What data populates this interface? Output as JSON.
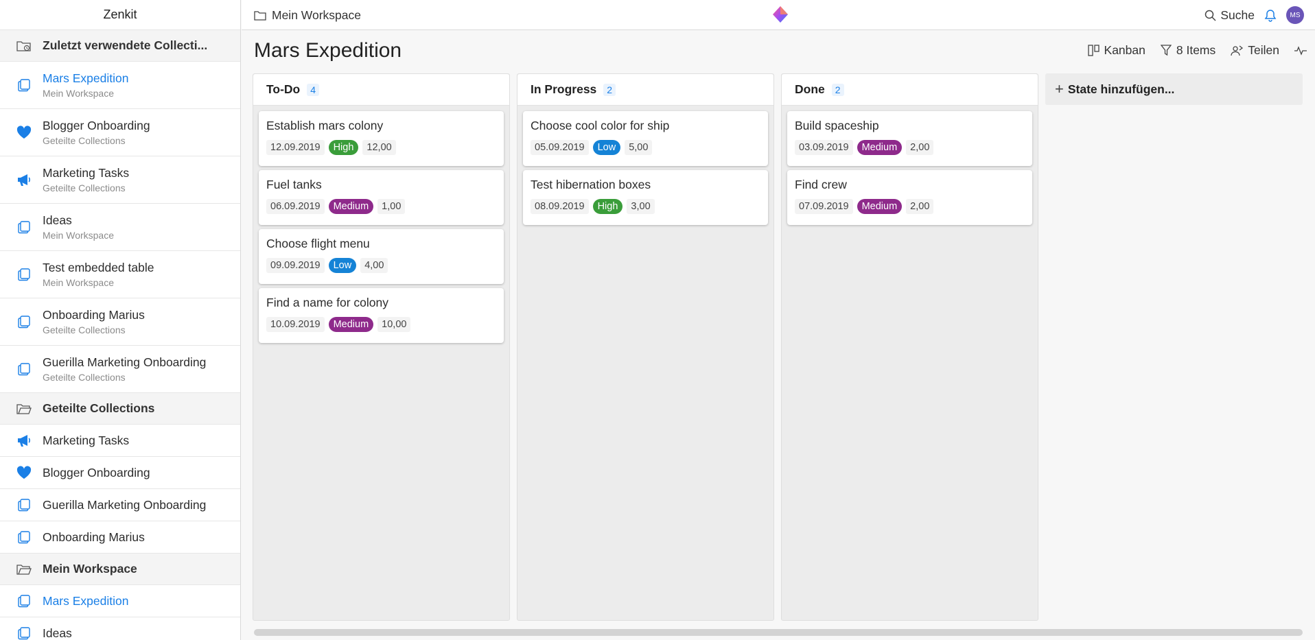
{
  "app": {
    "name": "Zenkit"
  },
  "sidebar": {
    "recent_header": "Zuletzt verwendete Collecti...",
    "recent": [
      {
        "label": "Mars Expedition",
        "sub": "Mein Workspace",
        "icon": "collection-icon",
        "active": true
      },
      {
        "label": "Blogger Onboarding",
        "sub": "Geteilte Collections",
        "icon": "heart-icon"
      },
      {
        "label": "Marketing Tasks",
        "sub": "Geteilte Collections",
        "icon": "megaphone-icon"
      },
      {
        "label": "Ideas",
        "sub": "Mein Workspace",
        "icon": "collection-icon"
      },
      {
        "label": "Test embedded table",
        "sub": "Mein Workspace",
        "icon": "collection-icon"
      },
      {
        "label": "Onboarding Marius",
        "sub": "Geteilte Collections",
        "icon": "collection-icon"
      },
      {
        "label": "Guerilla Marketing Onboarding",
        "sub": "Geteilte Collections",
        "icon": "collection-icon"
      }
    ],
    "shared_header": "Geteilte Collections",
    "shared": [
      {
        "label": "Marketing Tasks",
        "icon": "megaphone-icon"
      },
      {
        "label": "Blogger Onboarding",
        "icon": "heart-icon"
      },
      {
        "label": "Guerilla Marketing Onboarding",
        "icon": "collection-icon"
      },
      {
        "label": "Onboarding Marius",
        "icon": "collection-icon"
      }
    ],
    "workspace_header": "Mein Workspace",
    "workspace": [
      {
        "label": "Mars Expedition",
        "icon": "collection-icon",
        "active": true
      },
      {
        "label": "Ideas",
        "icon": "collection-icon"
      }
    ]
  },
  "topbar": {
    "breadcrumb": "Mein Workspace",
    "search_label": "Suche",
    "avatar_initials": "MS"
  },
  "main": {
    "title": "Mars Expedition",
    "toolbar": {
      "view": "Kanban",
      "items": "8 Items",
      "share": "Teilen"
    },
    "add_state": "State hinzufügen...",
    "columns": [
      {
        "title": "To-Do",
        "count": "4",
        "cards": [
          {
            "title": "Establish mars colony",
            "date": "12.09.2019",
            "priority": "High",
            "number": "12,00"
          },
          {
            "title": "Fuel tanks",
            "date": "06.09.2019",
            "priority": "Medium",
            "number": "1,00"
          },
          {
            "title": "Choose flight menu",
            "date": "09.09.2019",
            "priority": "Low",
            "number": "4,00"
          },
          {
            "title": "Find a name for colony",
            "date": "10.09.2019",
            "priority": "Medium",
            "number": "10,00"
          }
        ]
      },
      {
        "title": "In Progress",
        "count": "2",
        "cards": [
          {
            "title": "Choose cool color for ship",
            "date": "05.09.2019",
            "priority": "Low",
            "number": "5,00"
          },
          {
            "title": "Test hibernation boxes",
            "date": "08.09.2019",
            "priority": "High",
            "number": "3,00"
          }
        ]
      },
      {
        "title": "Done",
        "count": "2",
        "cards": [
          {
            "title": "Build spaceship",
            "date": "03.09.2019",
            "priority": "Medium",
            "number": "2,00"
          },
          {
            "title": "Find crew",
            "date": "07.09.2019",
            "priority": "Medium",
            "number": "2,00"
          }
        ]
      }
    ]
  },
  "colors": {
    "accent": "#1a7fe6",
    "priority_high": "#3a9d3a",
    "priority_medium": "#8e2a8b",
    "priority_low": "#1583d6"
  }
}
